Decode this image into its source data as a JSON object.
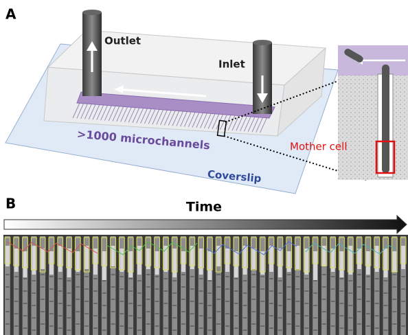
{
  "panel_a": {
    "label": "A",
    "outlet": "Outlet",
    "inlet": "Inlet",
    "microchannels": ">1000 microchannels",
    "coverslip": "Coverslip",
    "mother_cell": "Mother cell"
  },
  "panel_b": {
    "label": "B",
    "time": "Time"
  }
}
